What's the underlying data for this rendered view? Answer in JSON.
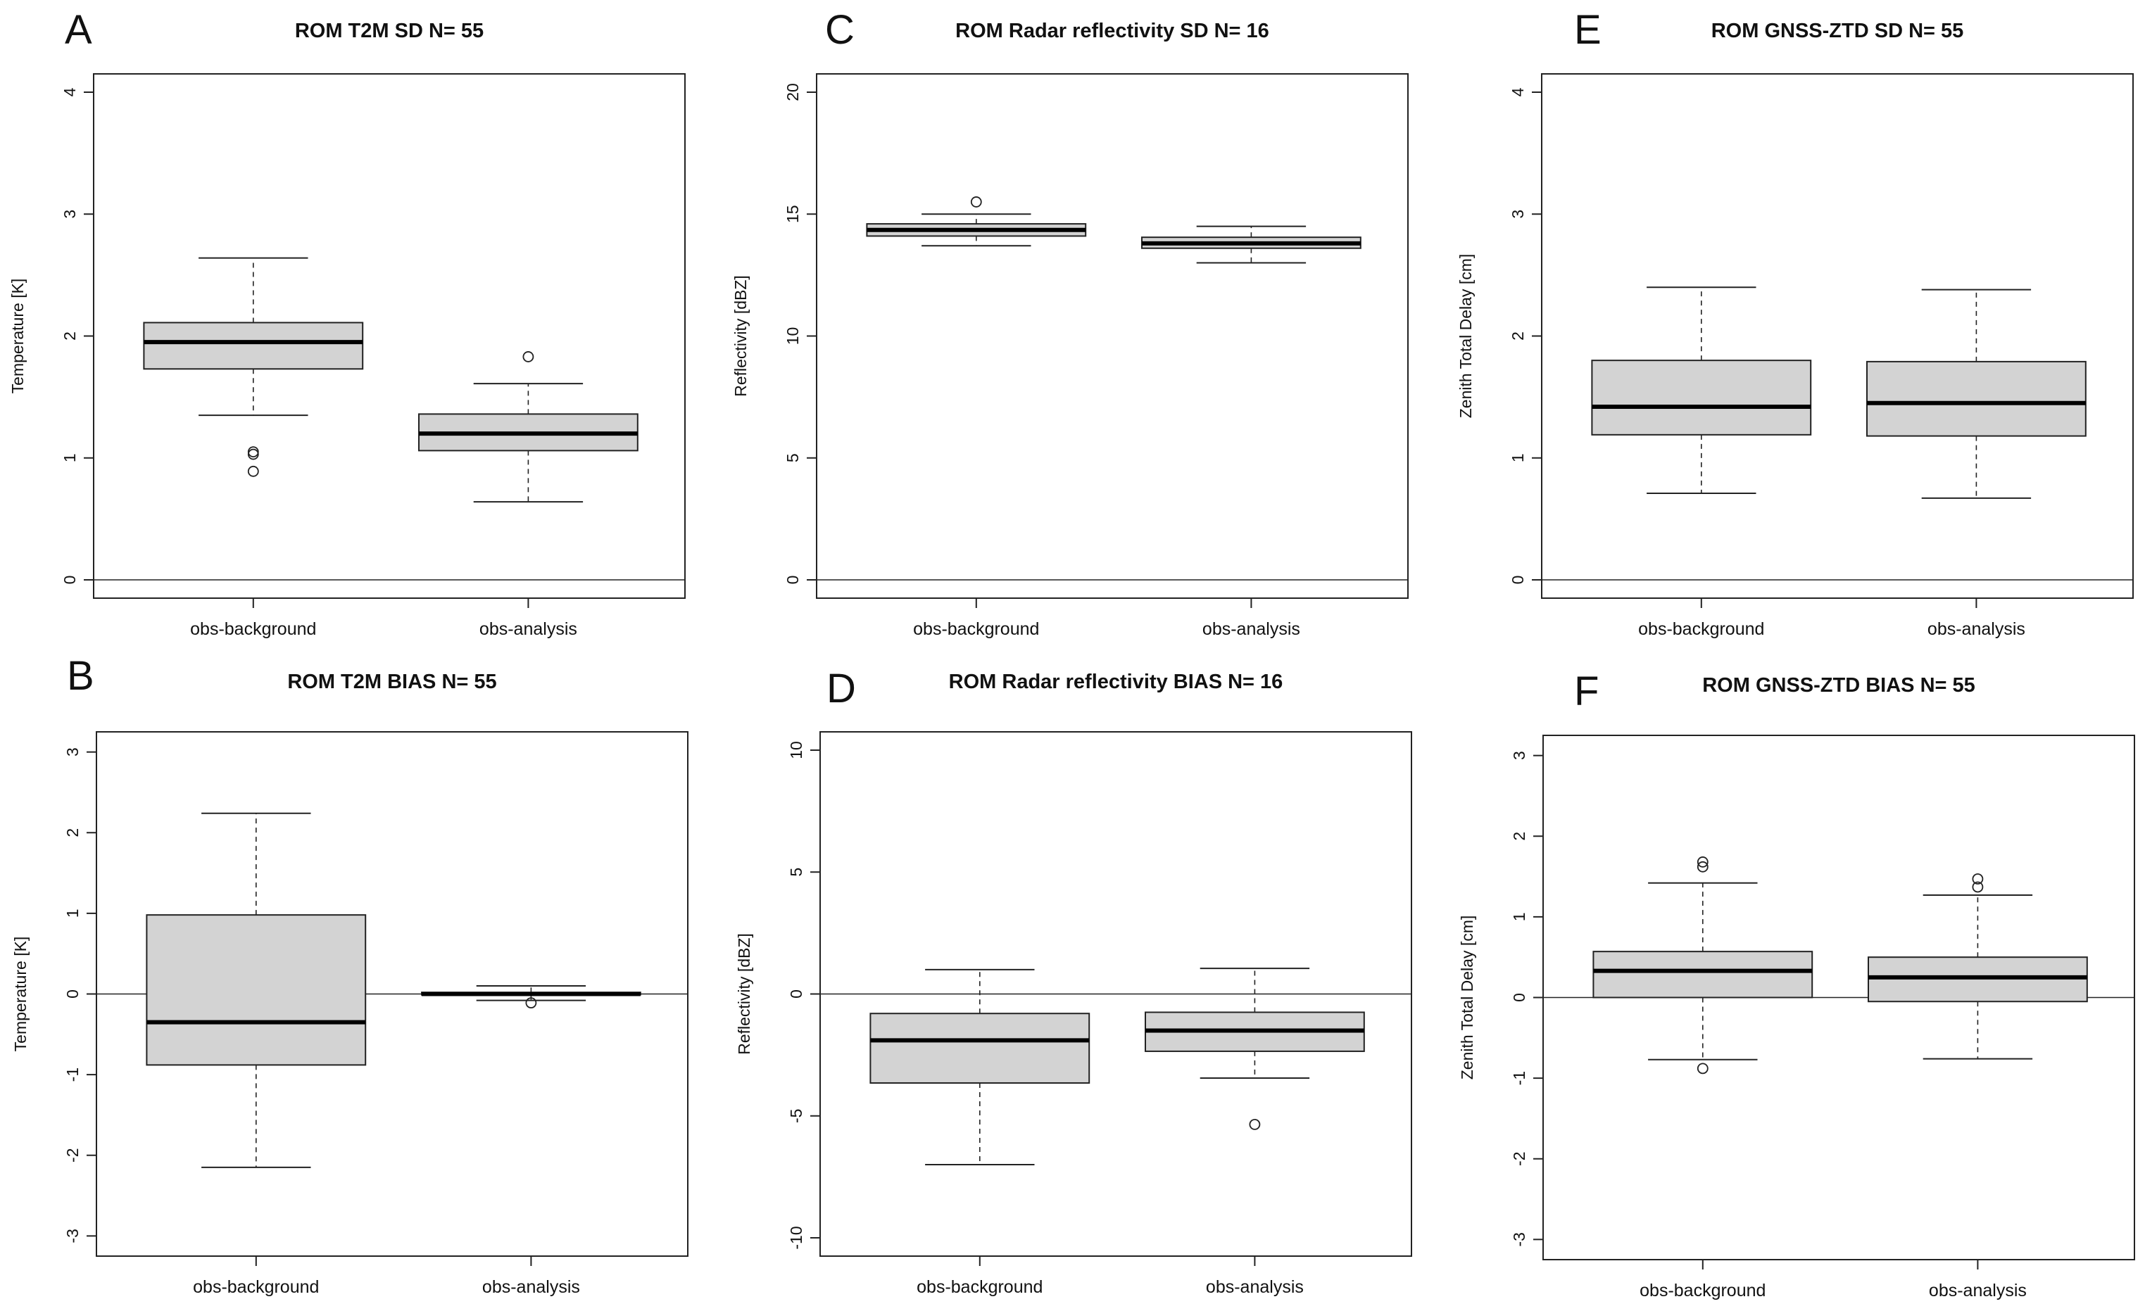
{
  "figure": {
    "panel_order": [
      "A",
      "C",
      "E",
      "B",
      "D",
      "F"
    ]
  },
  "chart_data": [
    {
      "letter": "A",
      "type": "boxplot",
      "title": "ROM T2M SD N= 55",
      "xlabel": "",
      "ylabel": "Temperature [K]",
      "categories": [
        "obs-background",
        "obs-analysis"
      ],
      "ylim": [
        -0.15,
        4.15
      ],
      "yticks": [
        0,
        1,
        2,
        3,
        4
      ],
      "ytick_labels": [
        "0",
        "1",
        "2",
        "3",
        "4"
      ],
      "reference_line": 0,
      "boxes": [
        {
          "lower_whisker": 1.35,
          "q1": 1.73,
          "median": 1.95,
          "q3": 2.11,
          "upper_whisker": 2.64,
          "outliers": [
            1.05,
            1.03,
            0.89
          ]
        },
        {
          "lower_whisker": 0.64,
          "q1": 1.06,
          "median": 1.2,
          "q3": 1.36,
          "upper_whisker": 1.61,
          "outliers": [
            1.83
          ]
        }
      ]
    },
    {
      "letter": "C",
      "type": "boxplot",
      "title": "ROM Radar reflectivity SD N= 16",
      "xlabel": "",
      "ylabel": "Reflectivity [dBZ]",
      "categories": [
        "obs-background",
        "obs-analysis"
      ],
      "ylim": [
        -0.75,
        20.75
      ],
      "yticks": [
        0,
        5,
        10,
        15,
        20
      ],
      "ytick_labels": [
        "0",
        "5",
        "10",
        "15",
        "20"
      ],
      "reference_line": 0,
      "boxes": [
        {
          "lower_whisker": 13.7,
          "q1": 14.1,
          "median": 14.35,
          "q3": 14.6,
          "upper_whisker": 15.0,
          "outliers": [
            15.5
          ]
        },
        {
          "lower_whisker": 13.0,
          "q1": 13.6,
          "median": 13.8,
          "q3": 14.05,
          "upper_whisker": 14.5,
          "outliers": []
        }
      ]
    },
    {
      "letter": "E",
      "type": "boxplot",
      "title": "ROM GNSS-ZTD SD N= 55",
      "xlabel": "",
      "ylabel": "Zenith Total Delay [cm]",
      "categories": [
        "obs-background",
        "obs-analysis"
      ],
      "ylim": [
        -0.15,
        4.15
      ],
      "yticks": [
        0,
        1,
        2,
        3,
        4
      ],
      "ytick_labels": [
        "0",
        "1",
        "2",
        "3",
        "4"
      ],
      "reference_line": 0,
      "boxes": [
        {
          "lower_whisker": 0.71,
          "q1": 1.19,
          "median": 1.42,
          "q3": 1.8,
          "upper_whisker": 2.4,
          "outliers": []
        },
        {
          "lower_whisker": 0.67,
          "q1": 1.18,
          "median": 1.45,
          "q3": 1.79,
          "upper_whisker": 2.38,
          "outliers": []
        }
      ]
    },
    {
      "letter": "B",
      "type": "boxplot",
      "title": "ROM T2M BIAS N= 55",
      "xlabel": "",
      "ylabel": "Temperature [K]",
      "categories": [
        "obs-background",
        "obs-analysis"
      ],
      "ylim": [
        -3.25,
        3.25
      ],
      "yticks": [
        -3,
        -2,
        -1,
        0,
        1,
        2,
        3
      ],
      "ytick_labels": [
        "-3",
        "-2",
        "-1",
        "0",
        "1",
        "2",
        "3"
      ],
      "reference_line": 0,
      "boxes": [
        {
          "lower_whisker": -2.15,
          "q1": -0.88,
          "median": -0.35,
          "q3": 0.98,
          "upper_whisker": 2.24,
          "outliers": []
        },
        {
          "lower_whisker": -0.08,
          "q1": -0.01,
          "median": 0.0,
          "q3": 0.02,
          "upper_whisker": 0.1,
          "outliers": [
            -0.11
          ]
        }
      ]
    },
    {
      "letter": "D",
      "type": "boxplot",
      "title": "ROM Radar reflectivity BIAS N= 16",
      "xlabel": "",
      "ylabel": "Reflectivity [dBZ]",
      "categories": [
        "obs-background",
        "obs-analysis"
      ],
      "ylim": [
        -10.75,
        10.75
      ],
      "yticks": [
        -10,
        -5,
        0,
        5,
        10
      ],
      "ytick_labels": [
        "-10",
        "-5",
        "0",
        "5",
        "10"
      ],
      "reference_line": 0,
      "boxes": [
        {
          "lower_whisker": -7.0,
          "q1": -3.65,
          "median": -1.9,
          "q3": -0.8,
          "upper_whisker": 1.0,
          "outliers": []
        },
        {
          "lower_whisker": -3.45,
          "q1": -2.35,
          "median": -1.5,
          "q3": -0.75,
          "upper_whisker": 1.05,
          "outliers": [
            -5.35
          ]
        }
      ]
    },
    {
      "letter": "F",
      "type": "boxplot",
      "title": "ROM GNSS-ZTD BIAS N= 55",
      "xlabel": "",
      "ylabel": "Zenith Total Delay [cm]",
      "categories": [
        "obs-background",
        "obs-analysis"
      ],
      "ylim": [
        -3.25,
        3.25
      ],
      "yticks": [
        -3,
        -2,
        -1,
        0,
        1,
        2,
        3
      ],
      "ytick_labels": [
        "-3",
        "-2",
        "-1",
        "0",
        "1",
        "2",
        "3"
      ],
      "reference_line": 0,
      "boxes": [
        {
          "lower_whisker": -0.77,
          "q1": 0.0,
          "median": 0.33,
          "q3": 0.57,
          "upper_whisker": 1.42,
          "outliers": [
            1.68,
            1.62,
            -0.88
          ]
        },
        {
          "lower_whisker": -0.76,
          "q1": -0.05,
          "median": 0.25,
          "q3": 0.5,
          "upper_whisker": 1.27,
          "outliers": [
            1.47,
            1.37
          ]
        }
      ]
    }
  ],
  "colors": {
    "box_fill": "#d3d3d3",
    "stroke": "#222222",
    "background": "#ffffff",
    "text": "#111111"
  }
}
